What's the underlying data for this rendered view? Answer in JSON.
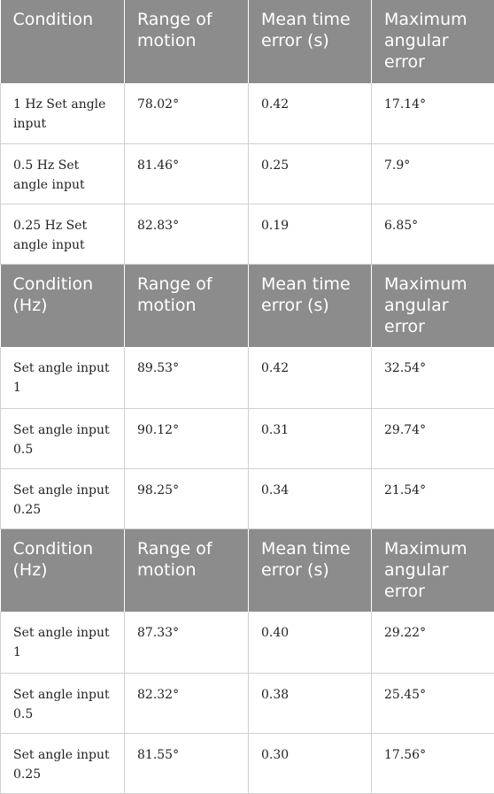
{
  "sections": [
    {
      "headers": [
        "Condition",
        "Range of motion",
        "Mean time error (s)",
        "Maximum angular error"
      ],
      "rows": [
        [
          "1 Hz Set angle input",
          "78.02°",
          "0.42",
          "17.14°"
        ],
        [
          "0.5 Hz Set angle input",
          "81.46°",
          "0.25",
          "7.9°"
        ],
        [
          "0.25 Hz Set angle input",
          "82.83°",
          "0.19",
          "6.85°"
        ]
      ]
    },
    {
      "headers": [
        "Condition (Hz)",
        "Range of motion",
        "Mean time error (s)",
        "Maximum angular error"
      ],
      "rows": [
        [
          "Set angle input 1",
          "89.53°",
          "0.42",
          "32.54°"
        ],
        [
          "Set angle input 0.5",
          "90.12°",
          "0.31",
          "29.74°"
        ],
        [
          "Set angle input 0.25",
          "98.25°",
          "0.34",
          "21.54°"
        ]
      ]
    },
    {
      "headers": [
        "Condition (Hz)",
        "Range of motion",
        "Mean time error (s)",
        "Maximum angular error"
      ],
      "rows": [
        [
          "Set angle input 1",
          "87.33°",
          "0.40",
          "29.22°"
        ],
        [
          "Set angle input 0.5",
          "82.32°",
          "0.38",
          "25.45°"
        ],
        [
          "Set angle input 0.25",
          "81.55°",
          "0.30",
          "17.56°"
        ]
      ]
    }
  ]
}
